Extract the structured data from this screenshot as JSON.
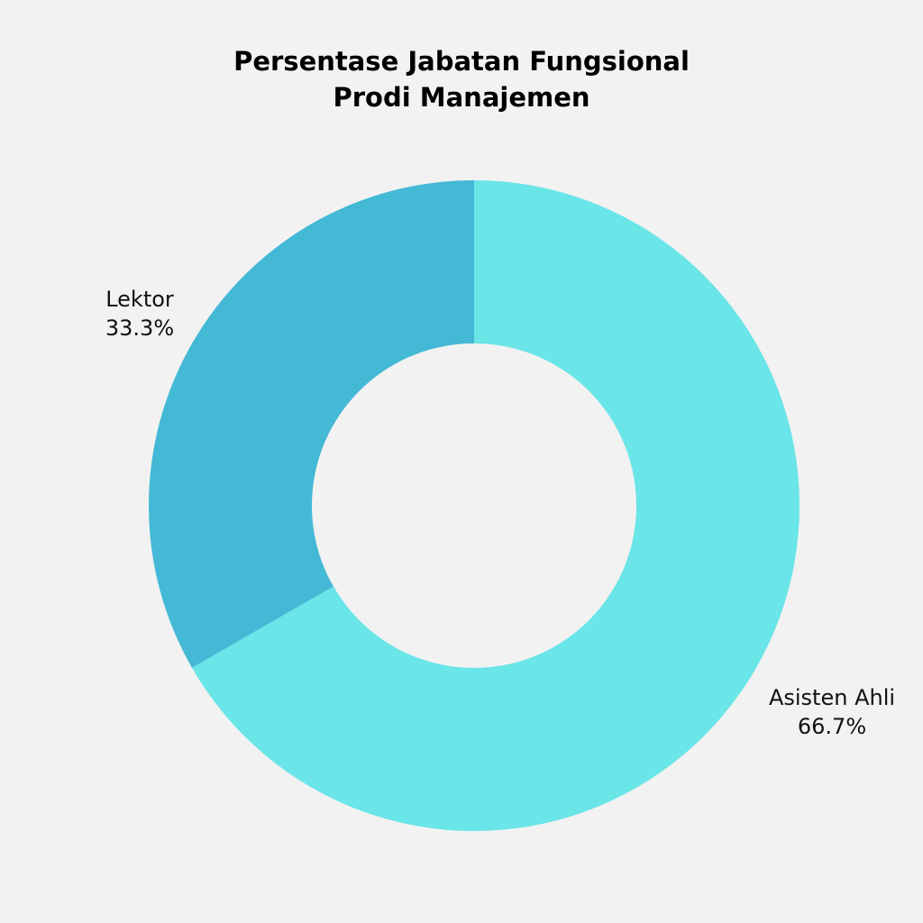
{
  "chart_data": {
    "type": "pie",
    "donut": true,
    "title_lines": [
      "Persentase Jabatan Fungsional",
      "Prodi Manajemen"
    ],
    "slices": [
      {
        "label": "Asisten Ahli",
        "value": 66.7,
        "display": "66.7%",
        "color": "#6ae5e8"
      },
      {
        "label": "Lektor",
        "value": 33.3,
        "display": "33.3%",
        "color": "#44b9d6"
      }
    ],
    "background": "#f2f2f2"
  }
}
